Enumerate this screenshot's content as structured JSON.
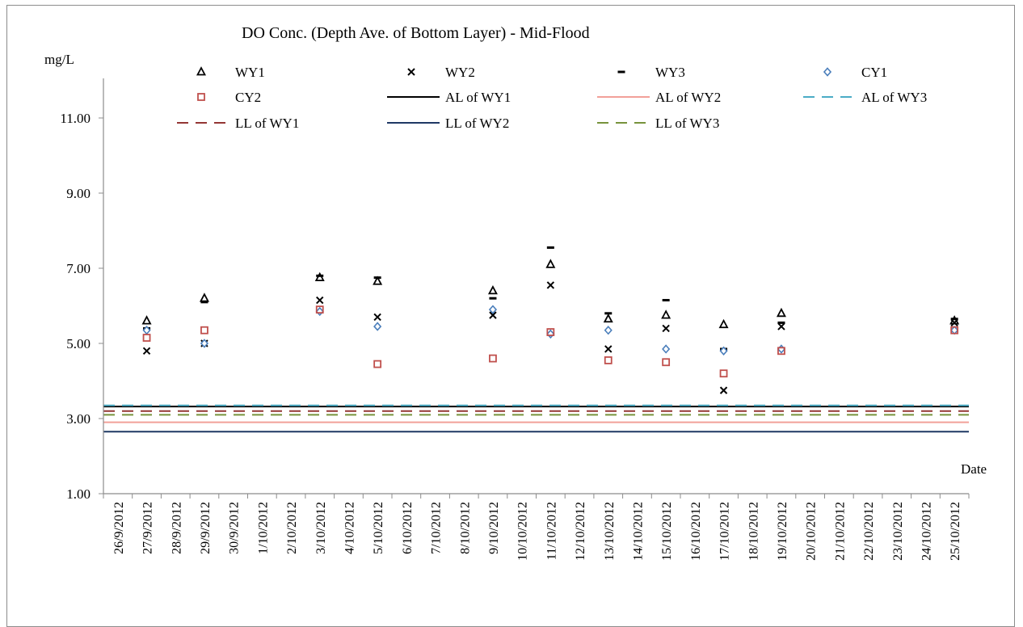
{
  "chart_data": {
    "type": "scatter",
    "title": "DO Conc. (Depth Ave. of Bottom Layer) - Mid-Flood",
    "ylabel": "mg/L",
    "xlabel": "Date",
    "ylim": [
      1.0,
      12.0
    ],
    "yticks": [
      "1.00",
      "3.00",
      "5.00",
      "7.00",
      "9.00",
      "11.00"
    ],
    "ytick_values": [
      1,
      3,
      5,
      7,
      9,
      11
    ],
    "categories": [
      "26/9/2012",
      "27/9/2012",
      "28/9/2012",
      "29/9/2012",
      "30/9/2012",
      "1/10/2012",
      "2/10/2012",
      "3/10/2012",
      "4/10/2012",
      "5/10/2012",
      "6/10/2012",
      "7/10/2012",
      "8/10/2012",
      "9/10/2012",
      "10/10/2012",
      "11/10/2012",
      "12/10/2012",
      "13/10/2012",
      "14/10/2012",
      "15/10/2012",
      "16/10/2012",
      "17/10/2012",
      "18/10/2012",
      "19/10/2012",
      "20/10/2012",
      "21/10/2012",
      "22/10/2012",
      "23/10/2012",
      "24/10/2012",
      "25/10/2012"
    ],
    "legend_placement": "top",
    "grid": false,
    "series": [
      {
        "name": "WY1",
        "marker": "triangle",
        "color": "#000000",
        "points": [
          [
            "27/9/2012",
            5.6
          ],
          [
            "29/9/2012",
            6.2
          ],
          [
            "3/10/2012",
            6.75
          ],
          [
            "5/10/2012",
            6.65
          ],
          [
            "9/10/2012",
            6.4
          ],
          [
            "11/10/2012",
            7.1
          ],
          [
            "13/10/2012",
            5.65
          ],
          [
            "15/10/2012",
            5.75
          ],
          [
            "17/10/2012",
            5.5
          ],
          [
            "19/10/2012",
            5.8
          ],
          [
            "25/10/2012",
            5.6
          ]
        ]
      },
      {
        "name": "WY2",
        "marker": "x",
        "color": "#000000",
        "points": [
          [
            "27/9/2012",
            4.8
          ],
          [
            "29/9/2012",
            5.0
          ],
          [
            "3/10/2012",
            6.15
          ],
          [
            "5/10/2012",
            5.7
          ],
          [
            "9/10/2012",
            5.75
          ],
          [
            "11/10/2012",
            6.55
          ],
          [
            "13/10/2012",
            4.85
          ],
          [
            "15/10/2012",
            5.4
          ],
          [
            "17/10/2012",
            3.75
          ],
          [
            "19/10/2012",
            5.45
          ],
          [
            "25/10/2012",
            5.55
          ]
        ]
      },
      {
        "name": "WY3",
        "marker": "dash",
        "color": "#000000",
        "points": [
          [
            "27/9/2012",
            5.4
          ],
          [
            "29/9/2012",
            6.1
          ],
          [
            "3/10/2012",
            6.8
          ],
          [
            "5/10/2012",
            6.75
          ],
          [
            "9/10/2012",
            6.2
          ],
          [
            "11/10/2012",
            7.55
          ],
          [
            "13/10/2012",
            5.8
          ],
          [
            "15/10/2012",
            6.15
          ],
          [
            "17/10/2012",
            4.85
          ],
          [
            "19/10/2012",
            5.55
          ],
          [
            "25/10/2012",
            5.65
          ]
        ]
      },
      {
        "name": "CY1",
        "marker": "diamond",
        "color": "#4a7ebb",
        "points": [
          [
            "27/9/2012",
            5.35
          ],
          [
            "29/9/2012",
            5.0
          ],
          [
            "3/10/2012",
            5.85
          ],
          [
            "5/10/2012",
            5.45
          ],
          [
            "9/10/2012",
            5.9
          ],
          [
            "11/10/2012",
            5.25
          ],
          [
            "13/10/2012",
            5.35
          ],
          [
            "15/10/2012",
            4.85
          ],
          [
            "17/10/2012",
            4.8
          ],
          [
            "19/10/2012",
            4.85
          ],
          [
            "25/10/2012",
            5.35
          ]
        ]
      },
      {
        "name": "CY2",
        "marker": "square",
        "color": "#c0504d",
        "points": [
          [
            "27/9/2012",
            5.15
          ],
          [
            "29/9/2012",
            5.35
          ],
          [
            "3/10/2012",
            5.9
          ],
          [
            "5/10/2012",
            4.45
          ],
          [
            "9/10/2012",
            4.6
          ],
          [
            "11/10/2012",
            5.3
          ],
          [
            "13/10/2012",
            4.55
          ],
          [
            "15/10/2012",
            4.5
          ],
          [
            "17/10/2012",
            4.2
          ],
          [
            "19/10/2012",
            4.8
          ],
          [
            "25/10/2012",
            5.35
          ]
        ]
      }
    ],
    "reference_lines": [
      {
        "name": "AL of WY1",
        "value": 3.32,
        "color": "#000000",
        "dash": "solid",
        "width": 2
      },
      {
        "name": "AL of WY2",
        "value": 2.9,
        "color": "#f2a099",
        "dash": "solid",
        "width": 2
      },
      {
        "name": "AL of WY3",
        "value": 3.35,
        "color": "#4bacc6",
        "dash": "dashed",
        "width": 2
      },
      {
        "name": "LL of WY1",
        "value": 3.2,
        "color": "#943634",
        "dash": "dashed",
        "width": 2
      },
      {
        "name": "LL of WY2",
        "value": 2.65,
        "color": "#1f3864",
        "dash": "solid",
        "width": 2
      },
      {
        "name": "LL of WY3",
        "value": 3.1,
        "color": "#77933c",
        "dash": "dashed",
        "width": 2
      }
    ]
  }
}
